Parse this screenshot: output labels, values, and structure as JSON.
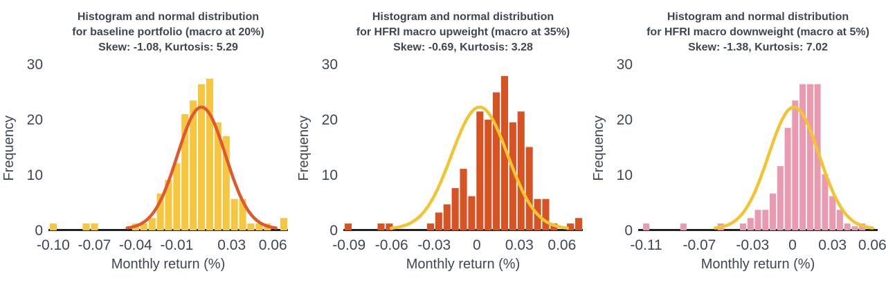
{
  "figure": {
    "y_axis_label": "Frequency",
    "x_axis_label": "Monthly return (%)",
    "y_ticks": [
      "30",
      "20",
      "10",
      "0"
    ],
    "text_color": "#3e4553",
    "axis_color": "#231f20",
    "background_color": "#ffffff"
  },
  "chart_data": [
    {
      "type": "bar",
      "subtype": "histogram-with-normal-curve",
      "title_lines": [
        "Histogram and normal distribution",
        "for baseline portfolio (macro at 20%)",
        "Skew: -1.08, Kurtosis: 5.29"
      ],
      "skew": -1.08,
      "kurtosis": 5.29,
      "ylabel": "Frequency",
      "xlabel": "Monthly return (%)",
      "y_max": 30,
      "x_domain": [
        -0.1035,
        0.071
      ],
      "x_ticks": [
        -0.1,
        -0.07,
        -0.04,
        -0.01,
        0.03,
        0.06
      ],
      "x_tick_labels": [
        "-0.10",
        "-0.07",
        "-0.04",
        "-0.01",
        "0.03",
        "0.06"
      ],
      "bar_color": "#f5c640",
      "curve_color": "#e0592e",
      "bins": {
        "start": -0.103,
        "width": 0.006,
        "heights": [
          1,
          0,
          0,
          0,
          1,
          1,
          0,
          0,
          0,
          0,
          1,
          1,
          2,
          6.5,
          9,
          12,
          21,
          23.5,
          26.5,
          27.5,
          19.5,
          17,
          5.5,
          5.5,
          1,
          1,
          1,
          0,
          2
        ]
      },
      "normal_curve": {
        "mean": 0.008,
        "sigma": 0.0175,
        "peak": 22.3
      }
    },
    {
      "type": "bar",
      "subtype": "histogram-with-normal-curve",
      "title_lines": [
        "Histogram and normal distribution",
        "for HFRI macro upweight (macro at 35%)",
        "Skew: -0.69, Kurtosis: 3.28"
      ],
      "skew": -0.69,
      "kurtosis": 3.28,
      "ylabel": "Frequency",
      "xlabel": "Monthly return (%)",
      "y_max": 30,
      "x_domain": [
        -0.094,
        0.0747
      ],
      "x_ticks": [
        -0.09,
        -0.06,
        -0.03,
        0,
        0.03,
        0.06
      ],
      "x_tick_labels": [
        "-0.09",
        "-0.06",
        "-0.03",
        "0",
        "0.03",
        "0.06"
      ],
      "bar_color": "#d75323",
      "curve_color": "#f3c431",
      "bins": {
        "start": -0.0935,
        "width": 0.0058,
        "heights": [
          1,
          0,
          0,
          0,
          1,
          1,
          0,
          0,
          0,
          0,
          1,
          3,
          4.5,
          7.5,
          11,
          6,
          21.5,
          20,
          25,
          28,
          19.5,
          21.5,
          15,
          5.5,
          5.5,
          1,
          0,
          1,
          2
        ]
      },
      "normal_curve": {
        "mean": 0.002,
        "sigma": 0.0198,
        "peak": 22.3
      }
    },
    {
      "type": "bar",
      "subtype": "histogram-with-normal-curve",
      "title_lines": [
        "Histogram and normal distribution",
        "for HFRI macro downweight (macro at 5%)",
        "Skew: -1.38, Kurtosis: 7.02"
      ],
      "skew": -1.38,
      "kurtosis": 7.02,
      "ylabel": "Frequency",
      "xlabel": "Monthly return (%)",
      "y_max": 30,
      "x_domain": [
        -0.116,
        0.064
      ],
      "x_ticks": [
        -0.11,
        -0.07,
        -0.03,
        0,
        0.03,
        0.06
      ],
      "x_tick_labels": [
        "-0.11",
        "-0.07",
        "-0.03",
        "0",
        "0.03",
        "0.06"
      ],
      "bar_color": "#e99ab0",
      "curve_color": "#f3c431",
      "bins": {
        "start": -0.1128,
        "width": 0.0056,
        "heights": [
          1,
          0,
          0,
          0,
          0,
          1,
          0,
          0,
          0,
          0,
          1,
          0,
          0,
          1,
          2,
          3.5,
          3.5,
          6.5,
          11.5,
          18.5,
          23.5,
          26.5,
          26.5,
          26.5,
          10,
          6,
          3.5,
          1,
          0.5,
          1
        ]
      },
      "normal_curve": {
        "mean": 0.001,
        "sigma": 0.019,
        "peak": 22.3
      }
    }
  ]
}
